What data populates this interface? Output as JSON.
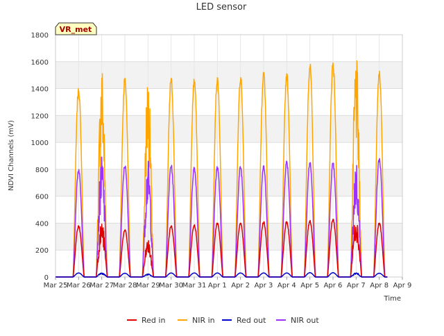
{
  "chart_data": {
    "type": "line",
    "title": "LED sensor",
    "xlabel": "Time",
    "ylabel": "NDVI Channels (mV)",
    "ylim": [
      0,
      1800
    ],
    "yticks": [
      0,
      200,
      400,
      600,
      800,
      1000,
      1200,
      1400,
      1600,
      1800
    ],
    "x_ticks": [
      "Mar 25",
      "Mar 26",
      "Mar 27",
      "Mar 28",
      "Mar 29",
      "Mar 30",
      "Mar 31",
      "Apr 1",
      "Apr 2",
      "Apr 3",
      "Apr 4",
      "Apr 5",
      "Apr 6",
      "Apr 7",
      "Apr 8",
      "Apr 9"
    ],
    "grid": true,
    "legend": "bottom",
    "annotation": "VR_met",
    "series": [
      {
        "name": "Red in",
        "color": "#e00000",
        "daily_peak": [
          380,
          405,
          350,
          270,
          380,
          390,
          400,
          400,
          410,
          410,
          420,
          430,
          445,
          400
        ]
      },
      {
        "name": "NIR in",
        "color": "#ffa500",
        "daily_peak": [
          1400,
          1545,
          1475,
          1470,
          1475,
          1470,
          1480,
          1495,
          1520,
          1510,
          1580,
          1590,
          1605,
          1530
        ]
      },
      {
        "name": "Red out",
        "color": "#0000cc",
        "daily_peak": [
          30,
          32,
          28,
          22,
          30,
          30,
          30,
          30,
          30,
          30,
          32,
          32,
          32,
          28
        ]
      },
      {
        "name": "NIR out",
        "color": "#9b30ff",
        "daily_peak": [
          800,
          890,
          830,
          860,
          830,
          815,
          820,
          820,
          825,
          860,
          850,
          845,
          840,
          880
        ]
      }
    ]
  }
}
